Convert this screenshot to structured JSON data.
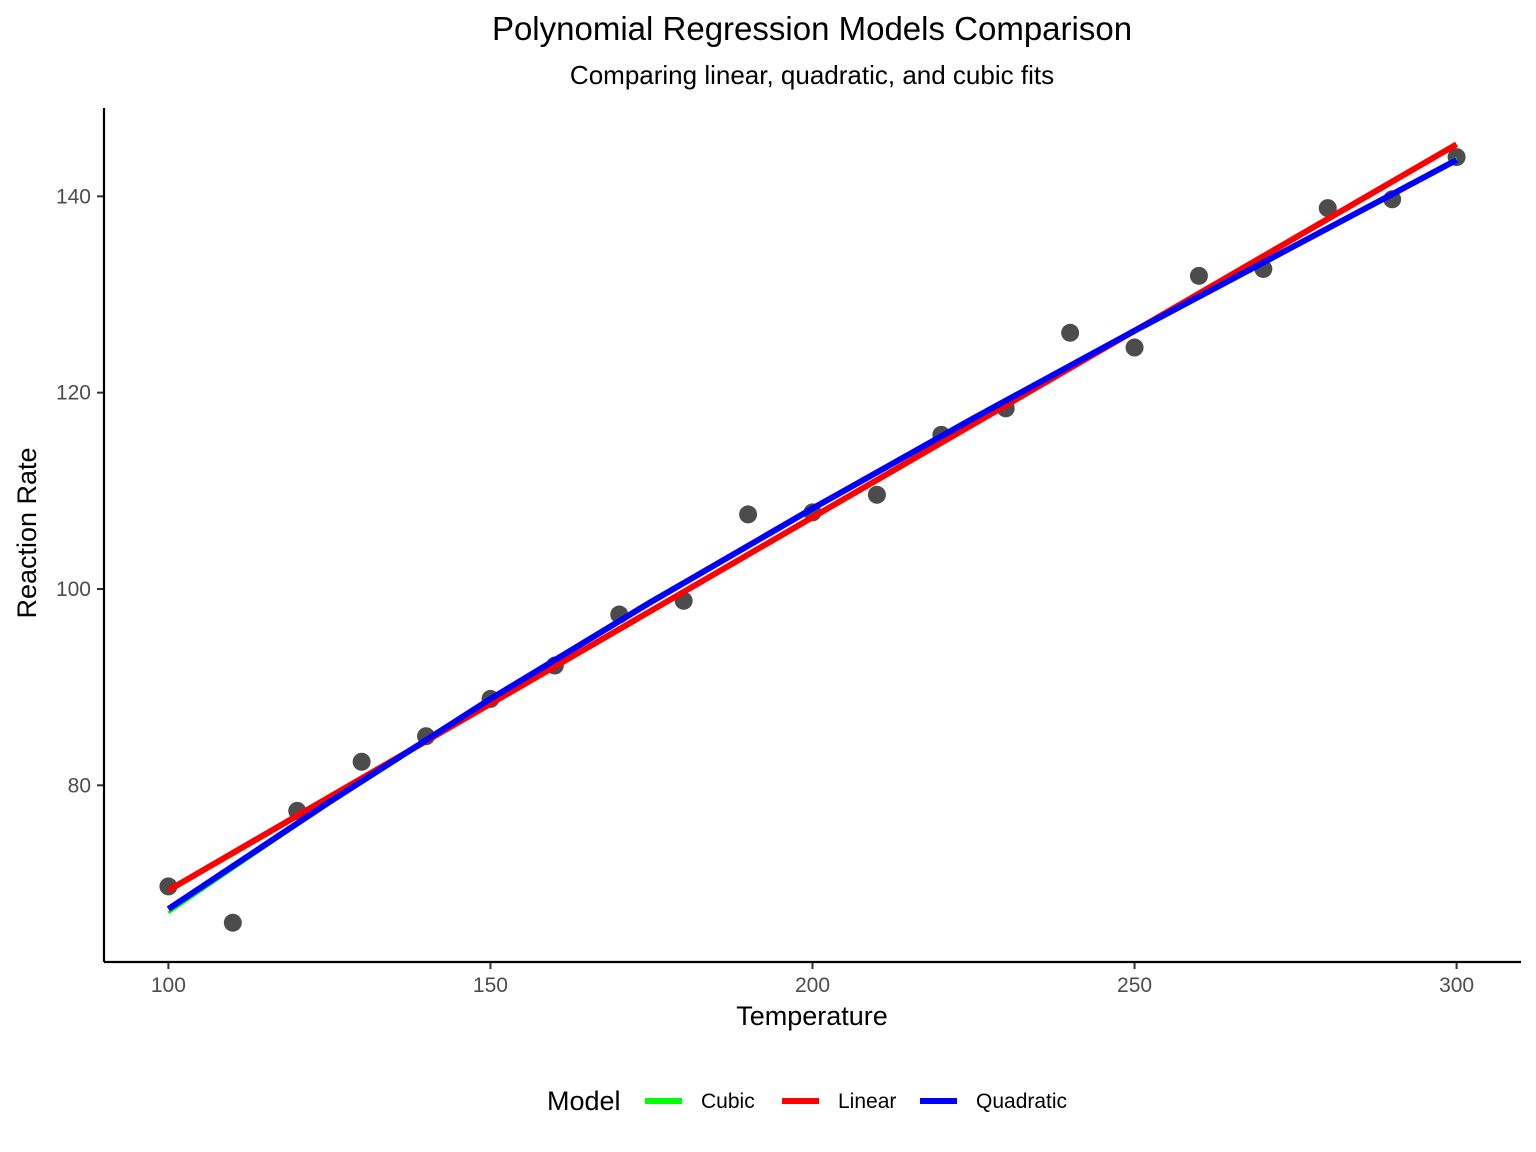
{
  "chart_data": {
    "type": "scatter",
    "title": "Polynomial Regression Models Comparison",
    "subtitle": "Comparing linear, quadratic, and cubic fits",
    "xlabel": "Temperature",
    "ylabel": "Reaction Rate",
    "xlim": [
      90,
      310
    ],
    "ylim": [
      62,
      149
    ],
    "x_ticks": [
      100,
      150,
      200,
      250,
      300
    ],
    "y_ticks": [
      80,
      100,
      120,
      140
    ],
    "grid": false,
    "legend": {
      "title": "Model",
      "position": "bottom",
      "entries": [
        {
          "label": "Cubic",
          "color": "#00ff00"
        },
        {
          "label": "Linear",
          "color": "#ff0000"
        },
        {
          "label": "Quadratic",
          "color": "#0000ff"
        }
      ]
    },
    "points": {
      "color": "#333333",
      "x": [
        100,
        110,
        120,
        130,
        140,
        150,
        160,
        170,
        180,
        190,
        200,
        210,
        220,
        230,
        240,
        250,
        260,
        270,
        280,
        290,
        300
      ],
      "y": [
        69.7,
        66.0,
        77.4,
        82.4,
        85.0,
        88.8,
        92.2,
        97.4,
        98.8,
        107.6,
        107.8,
        109.6,
        115.7,
        118.4,
        126.1,
        124.6,
        131.9,
        132.6,
        138.8,
        139.7,
        144.0
      ]
    },
    "series": [
      {
        "name": "Cubic",
        "color": "#00ff00",
        "width": 3,
        "x": [
          100,
          125,
          150,
          175,
          200,
          225,
          250,
          275,
          300
        ],
        "y": [
          67.0,
          78.2,
          88.9,
          98.9,
          108.2,
          117.3,
          126.2,
          134.9,
          143.9
        ]
      },
      {
        "name": "Linear",
        "color": "#ff0000",
        "width": 6,
        "x": [
          100,
          300
        ],
        "y": [
          69.3,
          145.3
        ]
      },
      {
        "name": "Quadratic",
        "color": "#0000ff",
        "width": 6,
        "x": [
          100,
          125,
          150,
          175,
          200,
          225,
          250,
          275,
          300
        ],
        "y": [
          67.4,
          78.3,
          88.8,
          98.7,
          108.2,
          117.4,
          126.3,
          135.0,
          143.7
        ]
      }
    ]
  }
}
